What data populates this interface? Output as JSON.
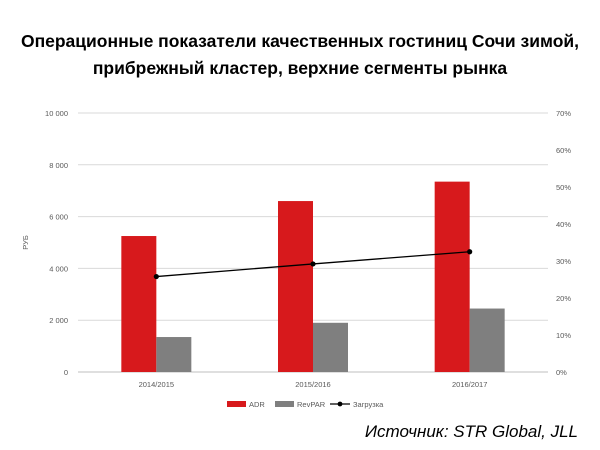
{
  "title_lines": [
    "Операционные показатели качественных гостиниц Сочи зимой,",
    "прибрежный кластер, верхние сегменты рынка"
  ],
  "source": "Источник: STR Global, JLL",
  "colors": {
    "adr": "#d7191c",
    "revpar": "#7f7f7f",
    "load": "#000000",
    "grid": "#d9d9d9",
    "text": "#595959"
  },
  "chart_data": {
    "type": "bar",
    "categories": [
      "2014/2015",
      "2015/2016",
      "2016/2017"
    ],
    "series": [
      {
        "name": "ADR",
        "type": "bar",
        "axis": "left",
        "values": [
          5250,
          6600,
          7350
        ]
      },
      {
        "name": "RevPAR",
        "type": "bar",
        "axis": "left",
        "values": [
          1350,
          1900,
          2450
        ]
      },
      {
        "name": "Загрузка",
        "type": "line",
        "axis": "right",
        "values": [
          0.258,
          0.292,
          0.325
        ]
      }
    ],
    "ylabel": "РУБ",
    "ylim": [
      0,
      10000
    ],
    "y_ticks": [
      {
        "value": 0,
        "label": "0"
      },
      {
        "value": 2000,
        "label": "2 000"
      },
      {
        "value": 4000,
        "label": "4 000"
      },
      {
        "value": 6000,
        "label": "6 000"
      },
      {
        "value": 8000,
        "label": "8 000"
      },
      {
        "value": 10000,
        "label": "10 000"
      }
    ],
    "y2lim": [
      0,
      0.7
    ],
    "y2_ticks": [
      {
        "value": 0,
        "label": "0%"
      },
      {
        "value": 0.1,
        "label": "10%"
      },
      {
        "value": 0.2,
        "label": "20%"
      },
      {
        "value": 0.3,
        "label": "30%"
      },
      {
        "value": 0.4,
        "label": "40%"
      },
      {
        "value": 0.5,
        "label": "50%"
      },
      {
        "value": 0.6,
        "label": "60%"
      },
      {
        "value": 0.7,
        "label": "70%"
      }
    ],
    "grid": true,
    "legend_position": "bottom"
  }
}
